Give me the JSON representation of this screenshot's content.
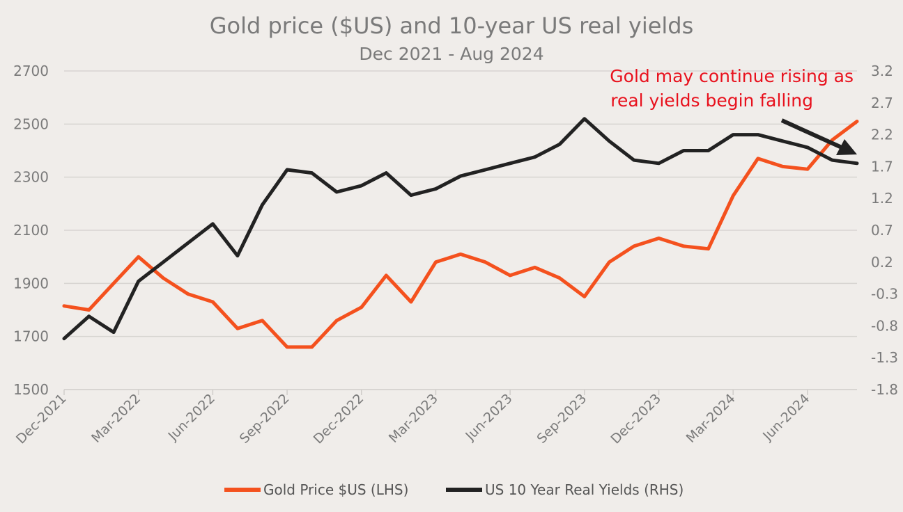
{
  "chart_data": {
    "type": "line",
    "title": "Gold price ($US) and 10-year US real yields",
    "subtitle": "Dec 2021 - Aug 2024",
    "left_axis": {
      "ticks": [
        "1500",
        "1700",
        "1900",
        "2100",
        "2300",
        "2500",
        "2700"
      ],
      "ylim": [
        1500,
        2700
      ]
    },
    "right_axis": {
      "ticks": [
        "-1.8",
        "-1.3",
        "-0.8",
        "-0.3",
        "0.2",
        "0.7",
        "1.2",
        "1.7",
        "2.2",
        "2.7",
        "3.2"
      ],
      "ylim": [
        -1.8,
        3.2
      ]
    },
    "x_ticks": [
      "Dec-2021",
      "Mar-2022",
      "Jun-2022",
      "Sep-2022",
      "Dec-2022",
      "Mar-2023",
      "Jun-2023",
      "Sep-2023",
      "Dec-2023",
      "Mar-2024",
      "Jun-2024"
    ],
    "x_range": [
      "2021-12",
      "2024-08"
    ],
    "grid": "horizontal",
    "legend_position": "bottom",
    "annotation": {
      "lines": [
        "Gold may continue rising as",
        "real yields begin falling"
      ],
      "color": "#e8111d"
    },
    "series": [
      {
        "name": "Gold Price $US (LHS)",
        "axis": "left",
        "color": "#f4511e",
        "x": [
          "2021-12",
          "2022-01",
          "2022-02",
          "2022-03",
          "2022-04",
          "2022-05",
          "2022-06",
          "2022-07",
          "2022-08",
          "2022-09",
          "2022-10",
          "2022-11",
          "2022-12",
          "2023-01",
          "2023-02",
          "2023-03",
          "2023-04",
          "2023-05",
          "2023-06",
          "2023-07",
          "2023-08",
          "2023-09",
          "2023-10",
          "2023-11",
          "2023-12",
          "2024-01",
          "2024-02",
          "2024-03",
          "2024-04",
          "2024-05",
          "2024-06",
          "2024-07",
          "2024-08"
        ],
        "values": [
          1815,
          1800,
          1900,
          2000,
          1920,
          1860,
          1830,
          1730,
          1760,
          1660,
          1660,
          1760,
          1810,
          1930,
          1830,
          1980,
          2010,
          1980,
          1930,
          1960,
          1920,
          1850,
          1980,
          2040,
          2070,
          2040,
          2030,
          2230,
          2370,
          2340,
          2330,
          2440,
          2510
        ]
      },
      {
        "name": "US 10 Year Real Yields (RHS)",
        "axis": "right",
        "color": "#222222",
        "x": [
          "2021-12",
          "2022-01",
          "2022-02",
          "2022-03",
          "2022-04",
          "2022-05",
          "2022-06",
          "2022-07",
          "2022-08",
          "2022-09",
          "2022-10",
          "2022-11",
          "2022-12",
          "2023-01",
          "2023-02",
          "2023-03",
          "2023-04",
          "2023-05",
          "2023-06",
          "2023-07",
          "2023-08",
          "2023-09",
          "2023-10",
          "2023-11",
          "2023-12",
          "2024-01",
          "2024-02",
          "2024-03",
          "2024-04",
          "2024-05",
          "2024-06",
          "2024-07",
          "2024-08"
        ],
        "values": [
          -1.0,
          -0.65,
          -0.9,
          -0.1,
          0.2,
          0.5,
          0.8,
          0.3,
          1.1,
          1.65,
          1.6,
          1.3,
          1.4,
          1.6,
          1.25,
          1.35,
          1.55,
          1.65,
          1.75,
          1.85,
          2.05,
          2.45,
          2.1,
          1.8,
          1.75,
          1.95,
          1.95,
          2.2,
          2.2,
          2.1,
          2.0,
          1.8,
          1.75
        ]
      }
    ]
  }
}
